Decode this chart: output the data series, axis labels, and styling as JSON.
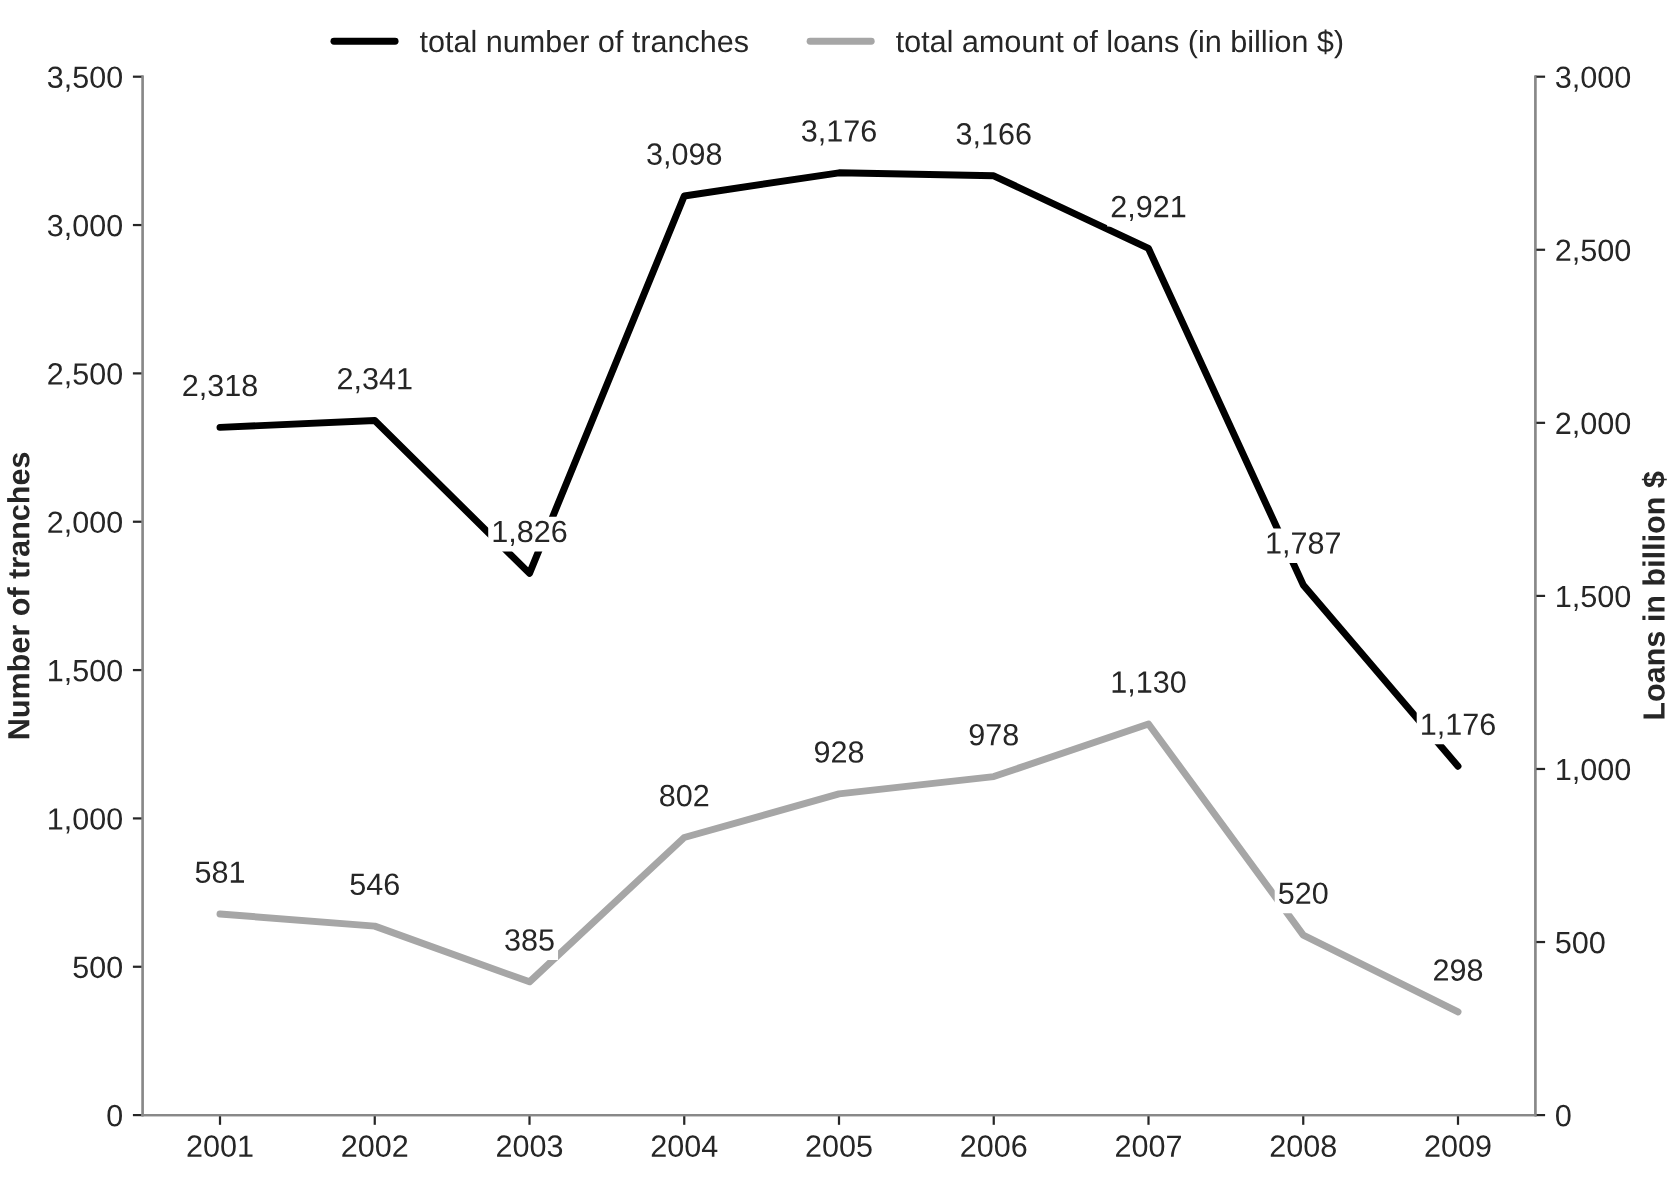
{
  "chart_data": {
    "type": "line",
    "categories": [
      "2001",
      "2002",
      "2003",
      "2004",
      "2005",
      "2006",
      "2007",
      "2008",
      "2009"
    ],
    "ylabel": "Number of tranches",
    "y2label": "Loans in billion $",
    "series": [
      {
        "name": "total number of tranches",
        "color": "#000000",
        "values": [
          2318,
          2341,
          1826,
          3098,
          3176,
          3166,
          2921,
          1787,
          1176
        ],
        "value_labels": [
          "2,318",
          "2,341",
          "1,826",
          "3,098",
          "3,176",
          "3,166",
          "2,921",
          "1,787",
          "1,176"
        ]
      },
      {
        "name": "total amount of loans (in billion $)",
        "color": "#a6a6a6",
        "axis": "y2",
        "values": [
          581,
          546,
          385,
          802,
          928,
          978,
          1130,
          520,
          298
        ],
        "value_labels": [
          "581",
          "546",
          "385",
          "802",
          "928",
          "978",
          "1,130",
          "520",
          "298"
        ]
      }
    ],
    "ylim": [
      0,
      3500
    ],
    "yticks": [
      0,
      500,
      {
        "value": 1000,
        "label": "1,000"
      },
      {
        "value": 1500,
        "label": "1,500"
      },
      {
        "value": 2000,
        "label": "2,000"
      },
      {
        "value": 2500,
        "label": "2,500"
      },
      {
        "value": 3000,
        "label": "3,000"
      },
      {
        "value": 3500,
        "label": "3,500"
      }
    ],
    "y2lim": [
      0,
      3000
    ],
    "y2ticks": [
      0,
      500,
      {
        "value": 1000,
        "label": "1,000"
      },
      {
        "value": 1500,
        "label": "1,500"
      },
      {
        "value": 2000,
        "label": "2,000"
      },
      {
        "value": 2500,
        "label": "2,500"
      },
      {
        "value": 3000,
        "label": "3,000"
      }
    ],
    "legend": "top",
    "grid": false,
    "marker": "none",
    "line_style": "solid"
  }
}
